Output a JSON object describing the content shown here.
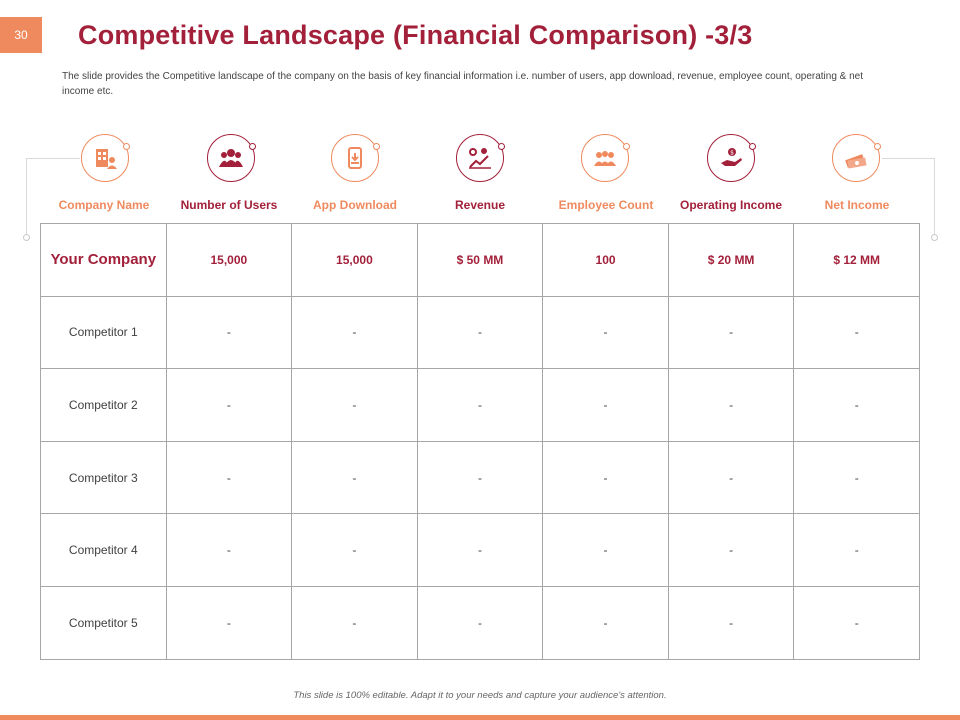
{
  "page_number": "30",
  "title": "Competitive Landscape (Financial Comparison) -3/3",
  "subtitle": "The slide provides the Competitive landscape of the company on the basis of key financial information i.e. number of users, app download, revenue, employee count, operating & net income etc.",
  "columns": [
    {
      "label": "Company Name",
      "icon": "hospital-building-icon",
      "accent": "#ef8a5f"
    },
    {
      "label": "Number of Users",
      "icon": "users-group-icon",
      "accent": "#a3203a"
    },
    {
      "label": "App Download",
      "icon": "app-download-icon",
      "accent": "#ef8a5f"
    },
    {
      "label": "Revenue",
      "icon": "revenue-chart-icon",
      "accent": "#a3203a"
    },
    {
      "label": "Employee Count",
      "icon": "employees-icon",
      "accent": "#ef8a5f"
    },
    {
      "label": "Operating Income",
      "icon": "income-hand-icon",
      "accent": "#a3203a"
    },
    {
      "label": "Net Income",
      "icon": "money-stack-icon",
      "accent": "#ef8a5f"
    }
  ],
  "rows": [
    {
      "name": "Your Company",
      "values": [
        "15,000",
        "15,000",
        "$ 50 MM",
        "100",
        "$ 20 MM",
        "$ 12 MM"
      ]
    },
    {
      "name": "Competitor  1",
      "values": [
        "-",
        "-",
        "-",
        "-",
        "-",
        "-"
      ]
    },
    {
      "name": "Competitor  2",
      "values": [
        "-",
        "-",
        "-",
        "-",
        "-",
        "-"
      ]
    },
    {
      "name": "Competitor  3",
      "values": [
        "-",
        "-",
        "-",
        "-",
        "-",
        "-"
      ]
    },
    {
      "name": "Competitor  4",
      "values": [
        "-",
        "-",
        "-",
        "-",
        "-",
        "-"
      ]
    },
    {
      "name": "Competitor  5",
      "values": [
        "-",
        "-",
        "-",
        "-",
        "-",
        "-"
      ]
    }
  ],
  "footer_note": "This slide is 100% editable. Adapt it to your needs and capture your audience's attention.",
  "colors": {
    "accent_orange": "#ef8a5f",
    "accent_red": "#a3203a"
  }
}
